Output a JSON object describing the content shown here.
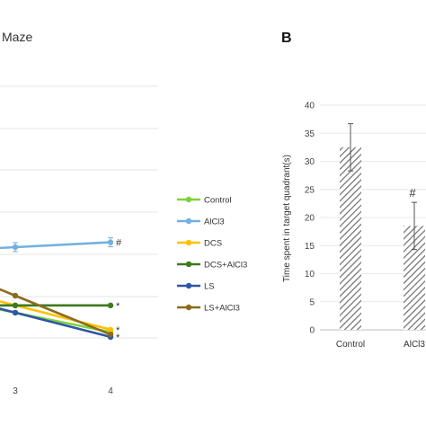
{
  "panel_a": {
    "title": "Maze"
  },
  "panel_b": {
    "letter": "B"
  },
  "chart_data": [
    {
      "type": "line",
      "title": "Maze",
      "x": [
        3,
        4
      ],
      "xticks": [
        "3",
        "4"
      ],
      "xlabel": "",
      "ylabel": "",
      "grid": true,
      "legend_position": "right",
      "series": [
        {
          "name": "Control",
          "color": "#7dd33c",
          "values": [
            13,
            5
          ]
        },
        {
          "name": "AlCl3",
          "color": "#74b0e0",
          "values": [
            40,
            42
          ],
          "marker_label": "#"
        },
        {
          "name": "DCS",
          "color": "#ffc000",
          "values": [
            16,
            6
          ],
          "marker_label": "*"
        },
        {
          "name": "DCS+AlCl3",
          "color": "#3d7a1e",
          "values": [
            16,
            16
          ],
          "marker_label": "*"
        },
        {
          "name": "LS",
          "color": "#2e56a8",
          "values": [
            13,
            3
          ],
          "marker_label": "*"
        },
        {
          "name": "LS+AlCl3",
          "color": "#8c6a1e",
          "values": [
            20,
            4
          ]
        }
      ]
    },
    {
      "type": "bar",
      "categories": [
        "Control",
        "AlCl3"
      ],
      "values": [
        32.5,
        18.5
      ],
      "errors": [
        4.2,
        4.2
      ],
      "annotations": [
        "",
        "#"
      ],
      "ylabel": "Time spent in target quadrant(s)",
      "ylim": [
        0,
        40
      ],
      "yticks": [
        "0",
        "5",
        "10",
        "15",
        "20",
        "25",
        "30",
        "35",
        "40"
      ],
      "pattern": "diagonal hatch"
    }
  ]
}
